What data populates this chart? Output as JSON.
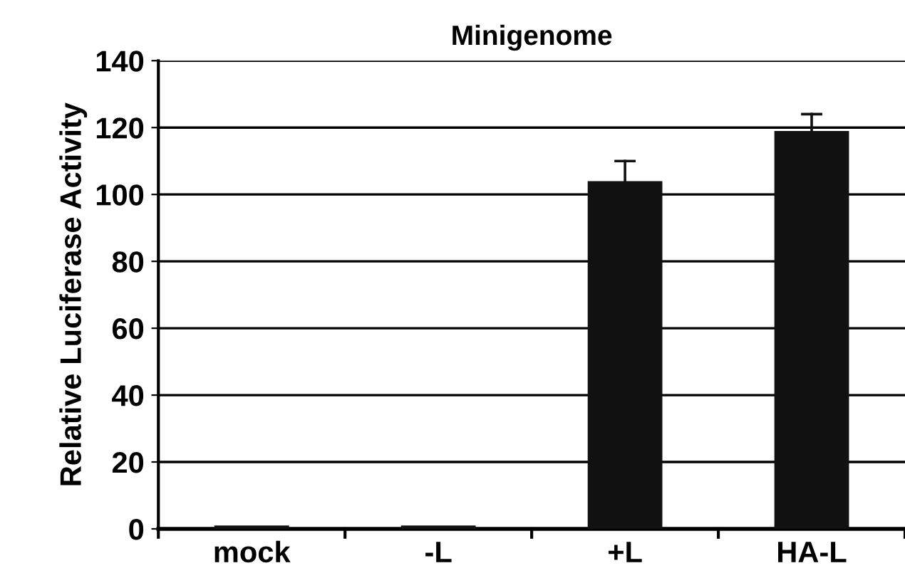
{
  "chart_data": {
    "type": "bar",
    "title": "Minigenome",
    "ylabel": "Relative Luciferase Activity",
    "categories": [
      "mock",
      "-L",
      "+L",
      "HA-L"
    ],
    "values": [
      1,
      1,
      104,
      119
    ],
    "errors": [
      null,
      null,
      [
        104,
        110
      ],
      [
        119,
        124
      ]
    ],
    "color": "#111111",
    "ylim": [
      0,
      140
    ],
    "yticks": [
      0,
      20,
      40,
      60,
      80,
      100,
      120,
      140
    ],
    "grid": "y",
    "legend": false
  }
}
